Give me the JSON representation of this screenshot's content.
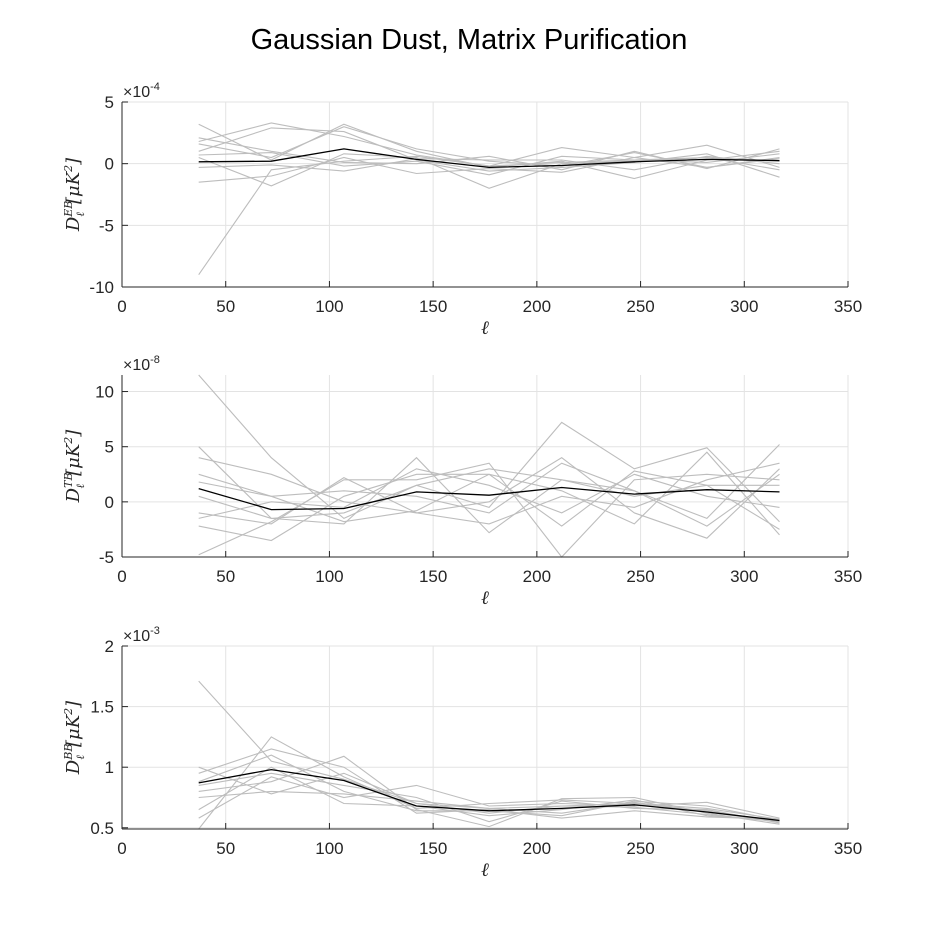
{
  "title": "Gaussian Dust, Matrix Purification",
  "colors": {
    "mean": "#000000",
    "realization": "#bdbdbd",
    "grid": "#e3e3e3",
    "axis": "#262626"
  },
  "chart_data": [
    {
      "type": "line",
      "panel": "EB",
      "ylabel": {
        "symbol": "D",
        "superscript": "EB",
        "subscript": "ℓ",
        "unit": "[μK",
        "unit_power": "2",
        "unit_close": "]"
      },
      "xlabel": "ℓ",
      "xlim": [
        0,
        350
      ],
      "ylim": [
        -10,
        5
      ],
      "xticks": [
        "0",
        "50",
        "100",
        "150",
        "200",
        "250",
        "300",
        "350"
      ],
      "xtick_values": [
        0,
        50,
        100,
        150,
        200,
        250,
        300,
        350
      ],
      "yticks": [
        "-10",
        "-5",
        "0",
        "5"
      ],
      "ytick_values": [
        -10,
        -5,
        0,
        5
      ],
      "multiplier": {
        "base": "×10",
        "exponent": "-4"
      },
      "grid": true,
      "x": [
        37,
        72,
        107,
        142,
        177,
        212,
        247,
        282,
        317
      ],
      "mean": [
        0.15,
        0.2,
        1.2,
        0.35,
        -0.3,
        -0.15,
        0.15,
        0.35,
        0.25
      ],
      "series": [
        {
          "values": [
            -9.0,
            -0.5,
            0.2,
            0.6,
            -0.2,
            0.1,
            0.3,
            0.5,
            0.2
          ]
        },
        {
          "values": [
            3.2,
            0.3,
            3.2,
            1.0,
            -0.3,
            0.2,
            -1.2,
            0.3,
            1.0
          ]
        },
        {
          "values": [
            1.8,
            3.3,
            2.2,
            0.7,
            -0.2,
            1.3,
            0.5,
            1.5,
            -0.3
          ]
        },
        {
          "values": [
            -1.5,
            -1.0,
            0.5,
            -0.8,
            -0.4,
            -0.7,
            0.5,
            -0.3,
            0.5
          ]
        },
        {
          "values": [
            0.5,
            -1.8,
            0.8,
            0.5,
            -2.0,
            0.0,
            0.2,
            0.5,
            -0.5
          ]
        },
        {
          "values": [
            2.1,
            1.0,
            0.1,
            0.0,
            0.6,
            -0.5,
            1.0,
            -0.4,
            1.2
          ]
        },
        {
          "values": [
            1.0,
            2.9,
            2.6,
            0.3,
            -0.6,
            -0.3,
            0.1,
            0.8,
            -1.1
          ]
        },
        {
          "values": [
            -0.3,
            -0.1,
            -0.6,
            0.4,
            0.3,
            0.3,
            -0.5,
            0.6,
            0.0
          ]
        },
        {
          "values": [
            1.6,
            0.5,
            3.0,
            1.2,
            0.2,
            -0.2,
            0.9,
            -0.3,
            0.4
          ]
        },
        {
          "values": [
            0.7,
            0.9,
            -0.2,
            0.2,
            -0.9,
            0.6,
            0.3,
            0.1,
            0.8
          ]
        }
      ]
    },
    {
      "type": "line",
      "panel": "TB",
      "ylabel": {
        "symbol": "D",
        "superscript": "TB",
        "subscript": "ℓ",
        "unit": "[μK",
        "unit_power": "2",
        "unit_close": "]"
      },
      "xlabel": "ℓ",
      "xlim": [
        0,
        350
      ],
      "ylim": [
        -5,
        11.5
      ],
      "xticks": [
        "0",
        "50",
        "100",
        "150",
        "200",
        "250",
        "300",
        "350"
      ],
      "xtick_values": [
        0,
        50,
        100,
        150,
        200,
        250,
        300,
        350
      ],
      "yticks": [
        "-5",
        "0",
        "5",
        "10"
      ],
      "ytick_values": [
        -5,
        0,
        5,
        10
      ],
      "multiplier": {
        "base": "×10",
        "exponent": "-8"
      },
      "grid": true,
      "x": [
        37,
        72,
        107,
        142,
        177,
        212,
        247,
        282,
        317
      ],
      "mean": [
        1.2,
        -0.7,
        -0.6,
        0.9,
        0.6,
        1.3,
        0.7,
        1.1,
        0.9
      ],
      "series": [
        {
          "values": [
            11.5,
            4.0,
            -1.5,
            1.5,
            -0.5,
            7.2,
            3.0,
            4.9,
            -1.8
          ]
        },
        {
          "values": [
            5.0,
            -1.5,
            -2.0,
            4.0,
            -2.8,
            2.0,
            1.0,
            -1.5,
            5.2
          ]
        },
        {
          "values": [
            -4.8,
            -1.8,
            2.0,
            2.0,
            3.5,
            -5.2,
            2.0,
            2.5,
            2.0
          ]
        },
        {
          "values": [
            4.0,
            2.5,
            0.0,
            -1.0,
            0.0,
            4.0,
            -1.0,
            -3.3,
            3.0
          ]
        },
        {
          "values": [
            -2.2,
            -3.5,
            0.5,
            2.5,
            2.5,
            -2.2,
            2.8,
            1.5,
            -2.5
          ]
        },
        {
          "values": [
            1.8,
            0.5,
            -1.8,
            -0.8,
            2.5,
            1.0,
            -2.0,
            4.5,
            -3.0
          ]
        },
        {
          "values": [
            0.5,
            -1.5,
            -1.0,
            1.5,
            3.0,
            2.0,
            0.5,
            1.5,
            1.5
          ]
        },
        {
          "values": [
            -1.0,
            -2.0,
            2.2,
            -1.0,
            -2.0,
            0.5,
            -0.5,
            2.0,
            3.5
          ]
        },
        {
          "values": [
            2.5,
            0.5,
            1.0,
            0.5,
            -1.0,
            3.5,
            1.0,
            -2.2,
            2.5
          ]
        },
        {
          "values": [
            -1.5,
            0.0,
            -0.5,
            3.0,
            1.5,
            -1.0,
            2.5,
            0.5,
            -0.5
          ]
        }
      ]
    },
    {
      "type": "line",
      "panel": "BB",
      "ylabel": {
        "symbol": "D",
        "superscript": "BB",
        "subscript": "ℓ",
        "unit": "[μK",
        "unit_power": "2",
        "unit_close": "]"
      },
      "xlabel": "ℓ",
      "xlim": [
        0,
        350
      ],
      "ylim": [
        0.49,
        2
      ],
      "xticks": [
        "0",
        "50",
        "100",
        "150",
        "200",
        "250",
        "300",
        "350"
      ],
      "xtick_values": [
        0,
        50,
        100,
        150,
        200,
        250,
        300,
        350
      ],
      "yticks": [
        "0.5",
        "1",
        "1.5",
        "2"
      ],
      "ytick_values": [
        0.5,
        1,
        1.5,
        2
      ],
      "multiplier": {
        "base": "×10",
        "exponent": "-3"
      },
      "grid": true,
      "x": [
        37,
        72,
        107,
        142,
        177,
        212,
        247,
        282,
        317
      ],
      "mean": [
        0.87,
        0.98,
        0.89,
        0.68,
        0.64,
        0.66,
        0.69,
        0.63,
        0.56
      ],
      "series": [
        {
          "values": [
            1.71,
            1.05,
            0.9,
            0.7,
            0.66,
            0.68,
            0.7,
            0.66,
            0.57
          ]
        },
        {
          "values": [
            0.49,
            1.25,
            0.92,
            0.66,
            0.7,
            0.73,
            0.7,
            0.64,
            0.55
          ]
        },
        {
          "values": [
            0.8,
            0.88,
            1.09,
            0.65,
            0.51,
            0.74,
            0.75,
            0.62,
            0.53
          ]
        },
        {
          "values": [
            0.88,
            1.1,
            0.8,
            0.64,
            0.64,
            0.6,
            0.72,
            0.68,
            0.56
          ]
        },
        {
          "values": [
            1.0,
            0.78,
            0.95,
            0.7,
            0.62,
            0.68,
            0.67,
            0.61,
            0.55
          ]
        },
        {
          "values": [
            0.58,
            0.92,
            0.75,
            0.85,
            0.68,
            0.7,
            0.68,
            0.71,
            0.58
          ]
        },
        {
          "values": [
            0.65,
            1.0,
            0.7,
            0.68,
            0.6,
            0.65,
            0.73,
            0.6,
            0.56
          ]
        },
        {
          "values": [
            0.85,
            0.95,
            0.85,
            0.75,
            0.55,
            0.72,
            0.66,
            0.65,
            0.54
          ]
        },
        {
          "values": [
            0.95,
            1.15,
            1.0,
            0.62,
            0.65,
            0.58,
            0.64,
            0.59,
            0.57
          ]
        },
        {
          "values": [
            0.75,
            0.8,
            0.78,
            0.72,
            0.66,
            0.62,
            0.71,
            0.63,
            0.55
          ]
        }
      ]
    }
  ]
}
